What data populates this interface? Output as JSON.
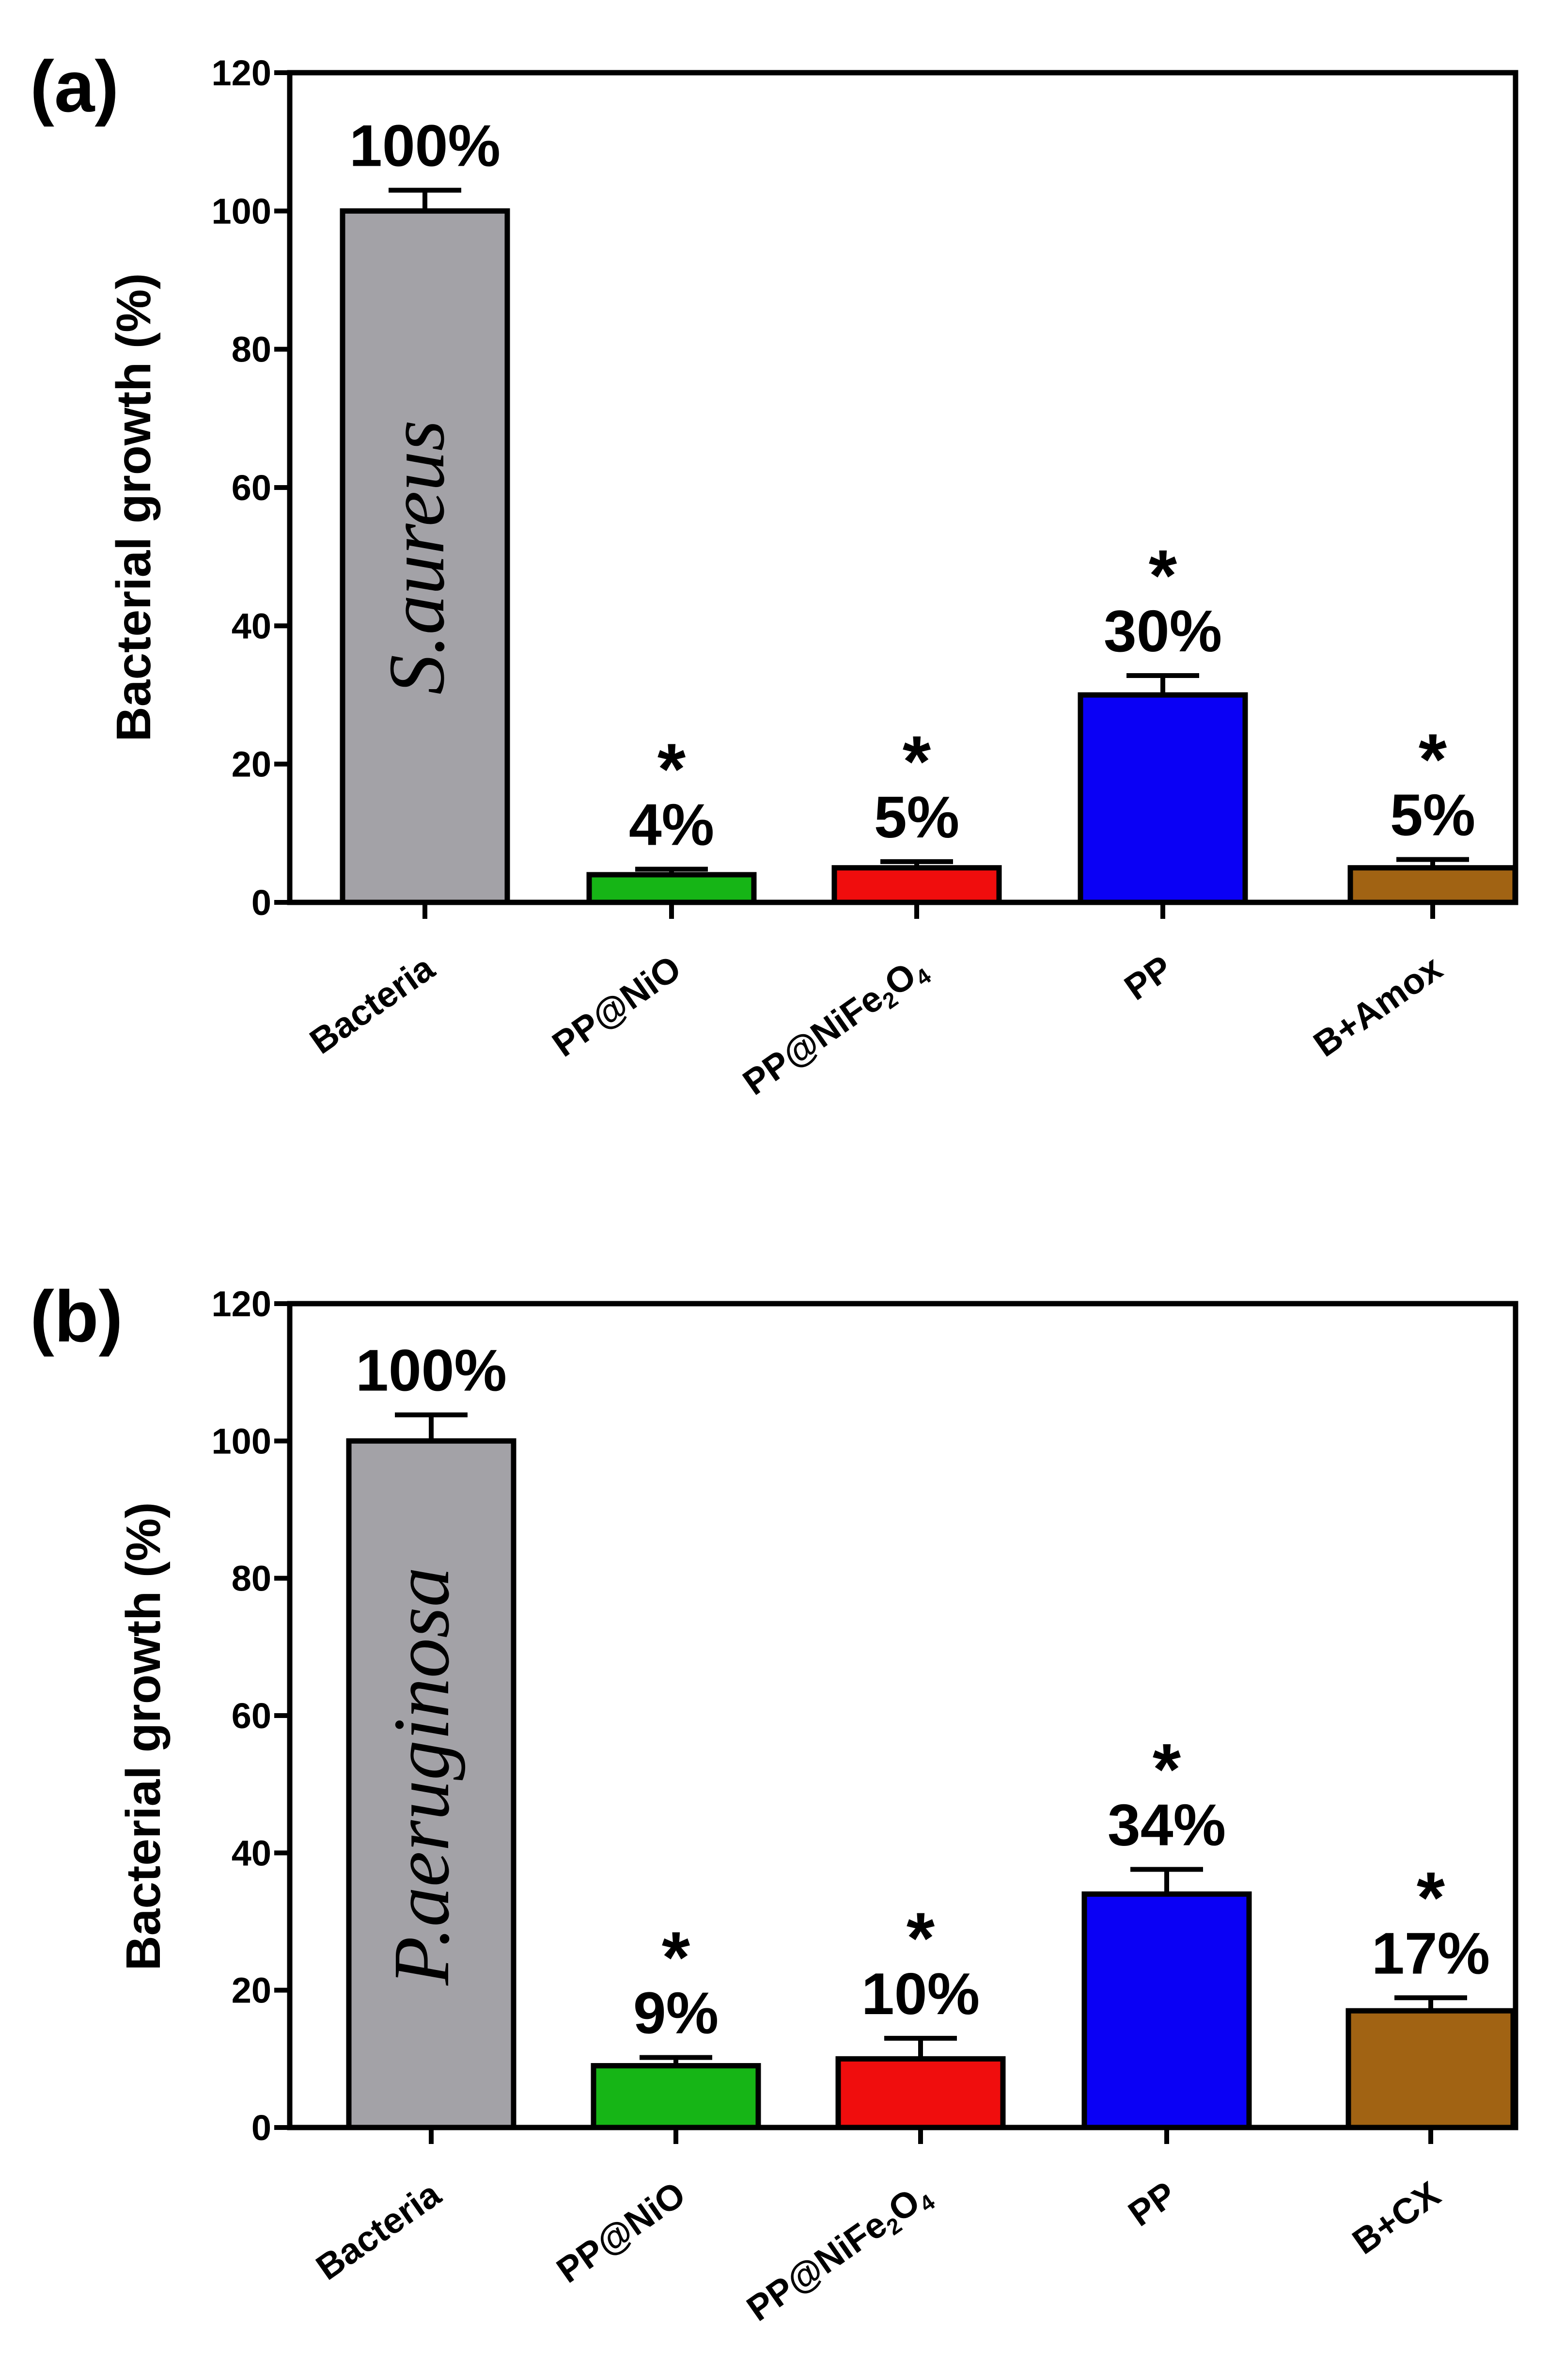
{
  "chart_data": [
    {
      "type": "bar",
      "panel_label": "(a)",
      "organism": "S.aureus",
      "ylabel": "Bacterial growth (%)",
      "xlabel": "",
      "ylim": [
        0,
        120
      ],
      "yticks": [
        "0",
        "20",
        "40",
        "60",
        "80",
        "100",
        "120"
      ],
      "categories": [
        "Bacteria",
        "PP@NiO",
        "PP@NiFe2O4",
        "PP",
        "B+Amox"
      ],
      "category_labels": [
        {
          "main": "Bacteria"
        },
        {
          "main": "PP@NiO"
        },
        {
          "main": "PP@NiFe",
          "sub1": "2",
          "mid": "O",
          "sub2": "4"
        },
        {
          "main": "PP"
        },
        {
          "main": "B+Amox"
        }
      ],
      "values": [
        100,
        4,
        5,
        30,
        5
      ],
      "errors": [
        3,
        0.8,
        0.9,
        2.8,
        1.2
      ],
      "value_labels": [
        "100%",
        "4%",
        "5%",
        "30%",
        "5%"
      ],
      "significance": [
        "",
        "*",
        "*",
        "*",
        "*"
      ],
      "colors": [
        "#a3a2a7",
        "#16b516",
        "#f00d0d",
        "#0a00f5",
        "#a16313"
      ]
    },
    {
      "type": "bar",
      "panel_label": "(b)",
      "organism": "P.aeruginosa",
      "ylabel": "Bacterial growth (%)",
      "xlabel": "",
      "ylim": [
        0,
        120
      ],
      "yticks": [
        "0",
        "20",
        "40",
        "60",
        "80",
        "100",
        "120"
      ],
      "categories": [
        "Bacteria",
        "PP@NiO",
        "PP@NiFe2O4",
        "PP",
        "B+CX"
      ],
      "category_labels": [
        {
          "main": "Bacteria"
        },
        {
          "main": "PP@NiO"
        },
        {
          "main": "PP@NiFe",
          "sub1": "2",
          "mid": "O",
          "sub2": "4"
        },
        {
          "main": "PP"
        },
        {
          "main": "B+CX"
        }
      ],
      "values": [
        100,
        9,
        10,
        34,
        17
      ],
      "errors": [
        3.8,
        1.2,
        3,
        3.6,
        1.9
      ],
      "value_labels": [
        "100%",
        "9%",
        "10%",
        "34%",
        "17%"
      ],
      "significance": [
        "",
        "*",
        "*",
        "*",
        "*"
      ],
      "colors": [
        "#a3a2a7",
        "#16b516",
        "#f00d0d",
        "#0a00f5",
        "#a16313"
      ]
    }
  ]
}
